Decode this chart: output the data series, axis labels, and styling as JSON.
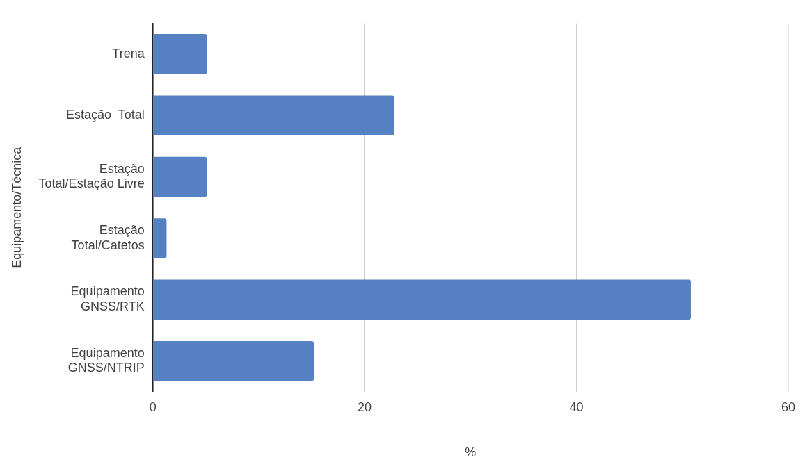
{
  "chart_data": {
    "type": "bar",
    "orientation": "horizontal",
    "xlabel": "%",
    "ylabel": "Equipamento/Técnica",
    "categories": [
      "Trena",
      "Estação  Total",
      "Estação\nTotal/Estação Livre",
      "Estação\nTotal/Catetos",
      "Equipamento\nGNSS/RTK",
      "Equipamento\nGNSS/NTRIP"
    ],
    "values": [
      5.1,
      22.8,
      5.1,
      1.3,
      50.8,
      15.2
    ],
    "color": "#5580c3",
    "xlim": [
      0,
      60
    ],
    "xticks": [
      0,
      20,
      40,
      60
    ],
    "grid": "x",
    "legend": false
  }
}
